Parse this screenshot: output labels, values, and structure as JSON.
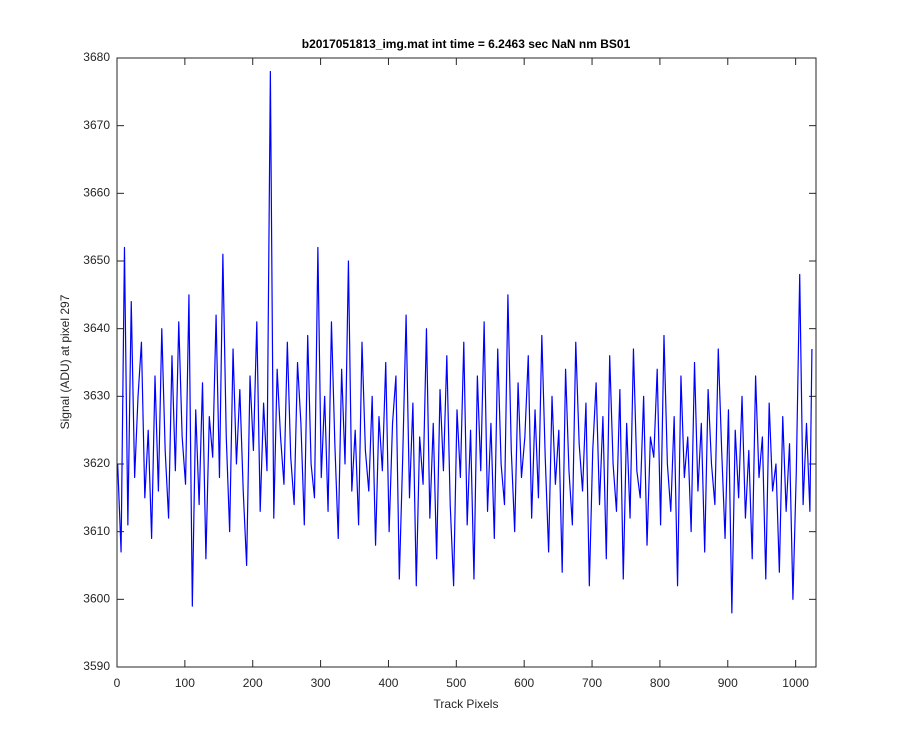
{
  "chart_data": {
    "type": "line",
    "title": "b2017051813_img.mat int time = 6.2463 sec  NaN nm BS01",
    "x_label": "Track Pixels",
    "y_label": "Signal (ADU) at pixel 297",
    "xlim": [
      0,
      1030
    ],
    "xticks": [
      0,
      100,
      200,
      300,
      400,
      500,
      600,
      700,
      800,
      900,
      1000
    ],
    "ylim": [
      3590,
      3680
    ],
    "yticks": [
      3590,
      3600,
      3610,
      3620,
      3630,
      3640,
      3650,
      3660,
      3670,
      3680
    ],
    "grid": false,
    "x": [
      1,
      6,
      11,
      16,
      21,
      26,
      31,
      36,
      41,
      46,
      51,
      56,
      61,
      66,
      71,
      76,
      81,
      86,
      91,
      96,
      101,
      106,
      111,
      116,
      121,
      126,
      131,
      136,
      141,
      146,
      151,
      156,
      161,
      166,
      171,
      176,
      181,
      186,
      191,
      196,
      201,
      206,
      211,
      216,
      221,
      226,
      231,
      236,
      241,
      246,
      251,
      256,
      261,
      266,
      271,
      276,
      281,
      286,
      291,
      296,
      301,
      306,
      311,
      316,
      321,
      326,
      331,
      336,
      341,
      346,
      351,
      356,
      361,
      366,
      371,
      376,
      381,
      386,
      391,
      396,
      401,
      406,
      411,
      416,
      421,
      426,
      431,
      436,
      441,
      446,
      451,
      456,
      461,
      466,
      471,
      476,
      481,
      486,
      491,
      496,
      501,
      506,
      511,
      516,
      521,
      526,
      531,
      536,
      541,
      546,
      551,
      556,
      561,
      566,
      571,
      576,
      581,
      586,
      591,
      596,
      601,
      606,
      611,
      616,
      621,
      626,
      631,
      636,
      641,
      646,
      651,
      656,
      661,
      666,
      671,
      676,
      681,
      686,
      691,
      696,
      701,
      706,
      711,
      716,
      721,
      726,
      731,
      736,
      741,
      746,
      751,
      756,
      761,
      766,
      771,
      776,
      781,
      786,
      791,
      796,
      801,
      806,
      811,
      816,
      821,
      826,
      831,
      836,
      841,
      846,
      851,
      856,
      861,
      866,
      871,
      876,
      881,
      886,
      891,
      896,
      901,
      906,
      911,
      916,
      921,
      926,
      931,
      936,
      941,
      946,
      951,
      956,
      961,
      966,
      971,
      976,
      981,
      986,
      991,
      996,
      1001,
      1006,
      1011,
      1016,
      1021,
      1024
    ],
    "series": [
      {
        "name": "signal",
        "color": "#0000ff",
        "values": [
          3620,
          3607,
          3652,
          3611,
          3644,
          3618,
          3630,
          3638,
          3615,
          3625,
          3609,
          3633,
          3616,
          3640,
          3622,
          3612,
          3636,
          3619,
          3641,
          3624,
          3617,
          3645,
          3599,
          3628,
          3614,
          3632,
          3606,
          3627,
          3621,
          3642,
          3618,
          3651,
          3624,
          3610,
          3637,
          3620,
          3631,
          3616,
          3605,
          3633,
          3622,
          3641,
          3613,
          3629,
          3619,
          3678,
          3612,
          3634,
          3624,
          3617,
          3638,
          3621,
          3614,
          3635,
          3626,
          3611,
          3639,
          3620,
          3615,
          3652,
          3618,
          3630,
          3613,
          3641,
          3623,
          3609,
          3634,
          3620,
          3650,
          3616,
          3625,
          3611,
          3638,
          3622,
          3616,
          3630,
          3608,
          3627,
          3619,
          3635,
          3610,
          3626,
          3633,
          3603,
          3621,
          3642,
          3615,
          3629,
          3602,
          3624,
          3617,
          3640,
          3612,
          3626,
          3606,
          3631,
          3619,
          3636,
          3614,
          3602,
          3628,
          3618,
          3638,
          3611,
          3625,
          3603,
          3633,
          3619,
          3641,
          3613,
          3626,
          3609,
          3637,
          3620,
          3614,
          3645,
          3622,
          3610,
          3632,
          3618,
          3624,
          3636,
          3612,
          3628,
          3615,
          3639,
          3621,
          3607,
          3630,
          3617,
          3625,
          3604,
          3634,
          3619,
          3611,
          3638,
          3623,
          3616,
          3629,
          3602,
          3622,
          3632,
          3614,
          3627,
          3606,
          3636,
          3620,
          3613,
          3631,
          3603,
          3626,
          3612,
          3637,
          3619,
          3615,
          3630,
          3608,
          3624,
          3621,
          3634,
          3611,
          3639,
          3620,
          3613,
          3627,
          3602,
          3633,
          3618,
          3624,
          3610,
          3635,
          3616,
          3626,
          3607,
          3631,
          3620,
          3614,
          3637,
          3622,
          3609,
          3628,
          3598,
          3625,
          3615,
          3630,
          3612,
          3622,
          3606,
          3633,
          3618,
          3624,
          3603,
          3629,
          3616,
          3620,
          3604,
          3627,
          3613,
          3623,
          3600,
          3619,
          3648,
          3614,
          3626,
          3613,
          3637
        ]
      }
    ]
  }
}
